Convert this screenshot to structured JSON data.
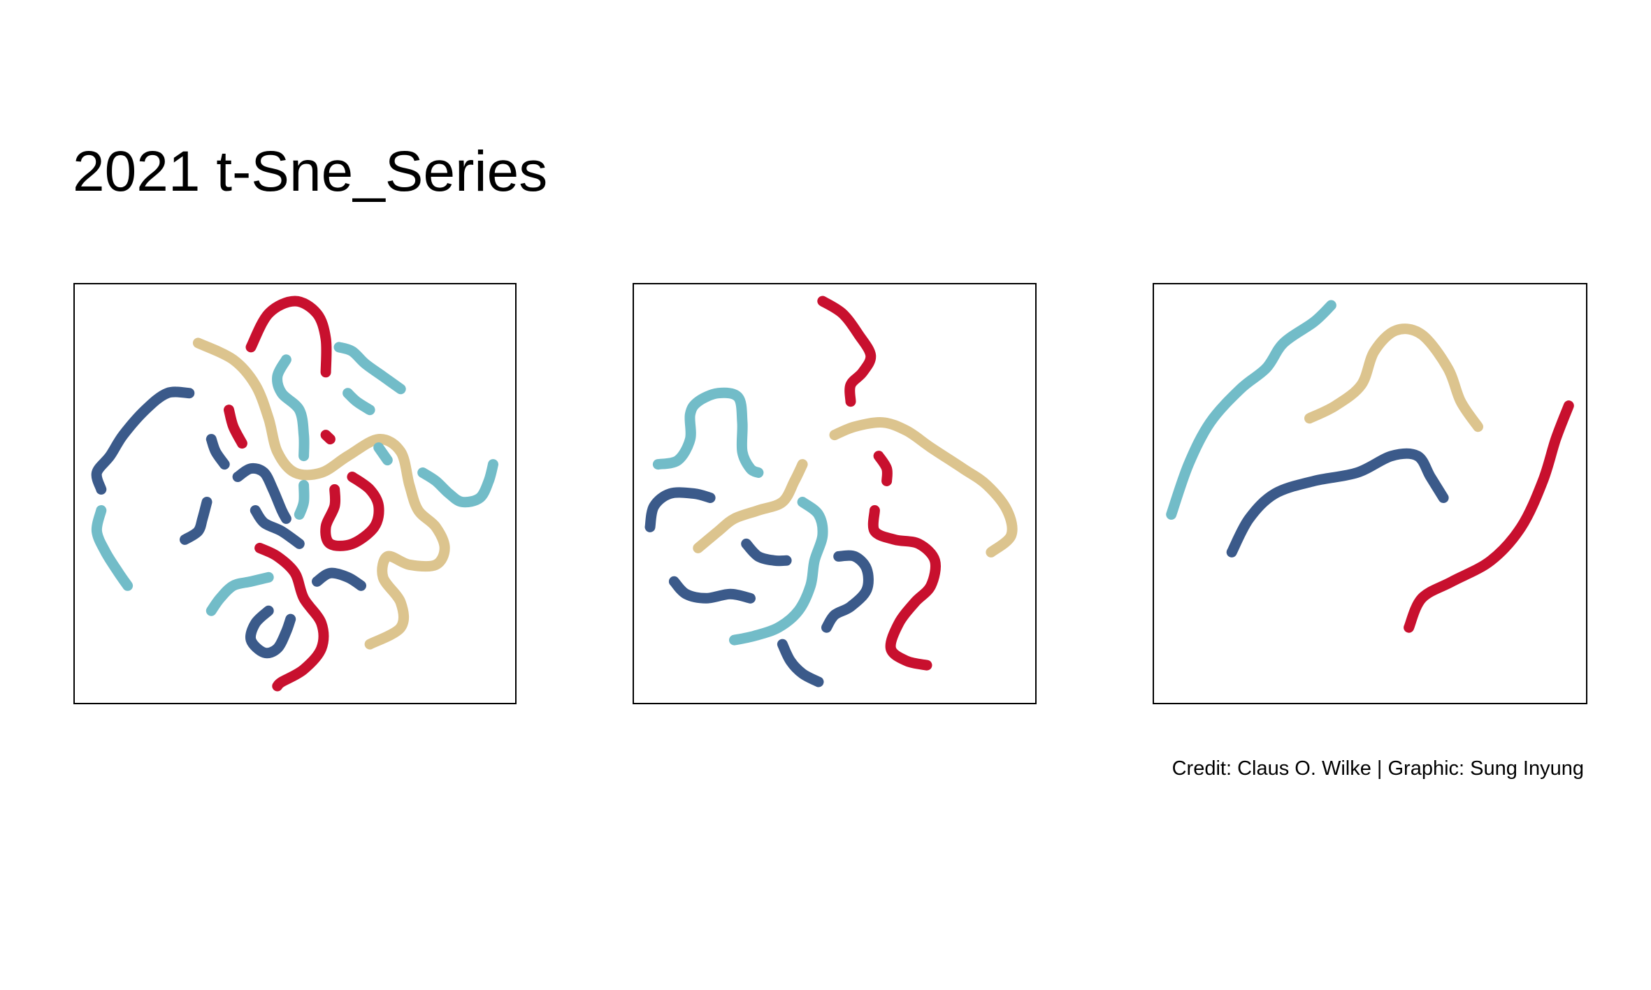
{
  "title": "2021 t-Sne_Series",
  "credit": "Credit: Claus O. Wilke | Graphic: Sung Inyung",
  "colors": {
    "red": "#c8102e",
    "tan": "#dcc48e",
    "teal": "#72bcc8",
    "navy": "#3b5a8a"
  },
  "chart_data": [
    {
      "type": "line",
      "xlim": [
        0,
        1
      ],
      "ylim": [
        0,
        1
      ],
      "series": [
        {
          "color": "red",
          "points": [
            [
              0.4,
              0.85
            ],
            [
              0.44,
              0.93
            ],
            [
              0.5,
              0.96
            ],
            [
              0.55,
              0.93
            ],
            [
              0.57,
              0.87
            ],
            [
              0.57,
              0.79
            ]
          ]
        },
        {
          "color": "tan",
          "points": [
            [
              0.28,
              0.86
            ],
            [
              0.36,
              0.82
            ],
            [
              0.41,
              0.76
            ],
            [
              0.44,
              0.68
            ],
            [
              0.46,
              0.6
            ],
            [
              0.5,
              0.55
            ],
            [
              0.56,
              0.55
            ],
            [
              0.62,
              0.59
            ],
            [
              0.69,
              0.63
            ],
            [
              0.74,
              0.6
            ],
            [
              0.76,
              0.52
            ],
            [
              0.78,
              0.46
            ],
            [
              0.82,
              0.42
            ],
            [
              0.84,
              0.37
            ],
            [
              0.82,
              0.33
            ],
            [
              0.76,
              0.33
            ],
            [
              0.71,
              0.35
            ],
            [
              0.7,
              0.3
            ],
            [
              0.74,
              0.24
            ],
            [
              0.74,
              0.18
            ],
            [
              0.67,
              0.14
            ]
          ]
        },
        {
          "color": "teal",
          "points": [
            [
              0.48,
              0.82
            ],
            [
              0.46,
              0.78
            ],
            [
              0.47,
              0.74
            ],
            [
              0.51,
              0.7
            ],
            [
              0.52,
              0.64
            ],
            [
              0.52,
              0.59
            ]
          ]
        },
        {
          "color": "teal",
          "points": [
            [
              0.6,
              0.85
            ],
            [
              0.63,
              0.84
            ],
            [
              0.66,
              0.81
            ],
            [
              0.7,
              0.78
            ],
            [
              0.74,
              0.75
            ]
          ]
        },
        {
          "color": "teal",
          "points": [
            [
              0.62,
              0.74
            ],
            [
              0.64,
              0.72
            ],
            [
              0.67,
              0.7
            ]
          ]
        },
        {
          "color": "navy",
          "points": [
            [
              0.26,
              0.74
            ],
            [
              0.21,
              0.74
            ],
            [
              0.16,
              0.7
            ],
            [
              0.11,
              0.64
            ],
            [
              0.08,
              0.59
            ],
            [
              0.05,
              0.55
            ],
            [
              0.06,
              0.51
            ]
          ]
        },
        {
          "color": "red",
          "points": [
            [
              0.35,
              0.7
            ],
            [
              0.36,
              0.66
            ],
            [
              0.38,
              0.62
            ]
          ]
        },
        {
          "color": "red",
          "points": [
            [
              0.57,
              0.64
            ],
            [
              0.58,
              0.63
            ]
          ]
        },
        {
          "color": "navy",
          "points": [
            [
              0.31,
              0.63
            ],
            [
              0.32,
              0.6
            ],
            [
              0.34,
              0.57
            ]
          ]
        },
        {
          "color": "teal",
          "points": [
            [
              0.69,
              0.61
            ],
            [
              0.71,
              0.58
            ]
          ]
        },
        {
          "color": "teal",
          "points": [
            [
              0.79,
              0.55
            ],
            [
              0.82,
              0.53
            ],
            [
              0.85,
              0.5
            ],
            [
              0.88,
              0.48
            ],
            [
              0.92,
              0.49
            ],
            [
              0.94,
              0.53
            ],
            [
              0.95,
              0.57
            ]
          ]
        },
        {
          "color": "navy",
          "points": [
            [
              0.37,
              0.54
            ],
            [
              0.4,
              0.56
            ],
            [
              0.43,
              0.55
            ],
            [
              0.45,
              0.51
            ],
            [
              0.47,
              0.46
            ],
            [
              0.48,
              0.44
            ]
          ]
        },
        {
          "color": "teal",
          "points": [
            [
              0.52,
              0.52
            ],
            [
              0.52,
              0.48
            ],
            [
              0.51,
              0.45
            ]
          ]
        },
        {
          "color": "red",
          "points": [
            [
              0.63,
              0.54
            ],
            [
              0.67,
              0.51
            ],
            [
              0.69,
              0.47
            ],
            [
              0.68,
              0.42
            ],
            [
              0.63,
              0.38
            ],
            [
              0.58,
              0.38
            ],
            [
              0.57,
              0.42
            ],
            [
              0.59,
              0.47
            ],
            [
              0.59,
              0.51
            ]
          ]
        },
        {
          "color": "teal",
          "points": [
            [
              0.06,
              0.46
            ],
            [
              0.05,
              0.41
            ],
            [
              0.07,
              0.36
            ],
            [
              0.1,
              0.31
            ],
            [
              0.12,
              0.28
            ]
          ]
        },
        {
          "color": "navy",
          "points": [
            [
              0.3,
              0.48
            ],
            [
              0.29,
              0.44
            ],
            [
              0.28,
              0.41
            ],
            [
              0.25,
              0.39
            ]
          ]
        },
        {
          "color": "navy",
          "points": [
            [
              0.41,
              0.46
            ],
            [
              0.43,
              0.43
            ],
            [
              0.47,
              0.41
            ],
            [
              0.51,
              0.38
            ]
          ]
        },
        {
          "color": "red",
          "points": [
            [
              0.42,
              0.37
            ],
            [
              0.46,
              0.35
            ],
            [
              0.5,
              0.31
            ],
            [
              0.52,
              0.25
            ],
            [
              0.56,
              0.19
            ],
            [
              0.56,
              0.13
            ],
            [
              0.52,
              0.08
            ],
            [
              0.47,
              0.05
            ],
            [
              0.46,
              0.04
            ]
          ]
        },
        {
          "color": "navy",
          "points": [
            [
              0.55,
              0.29
            ],
            [
              0.58,
              0.31
            ],
            [
              0.62,
              0.3
            ],
            [
              0.65,
              0.28
            ]
          ]
        },
        {
          "color": "teal",
          "points": [
            [
              0.31,
              0.22
            ],
            [
              0.33,
              0.25
            ],
            [
              0.36,
              0.28
            ],
            [
              0.4,
              0.29
            ],
            [
              0.44,
              0.3
            ]
          ]
        },
        {
          "color": "navy",
          "points": [
            [
              0.44,
              0.22
            ],
            [
              0.41,
              0.19
            ],
            [
              0.4,
              0.15
            ],
            [
              0.43,
              0.12
            ],
            [
              0.46,
              0.13
            ],
            [
              0.48,
              0.17
            ],
            [
              0.49,
              0.2
            ]
          ]
        }
      ]
    },
    {
      "type": "line",
      "xlim": [
        0,
        1
      ],
      "ylim": [
        0,
        1
      ],
      "series": [
        {
          "color": "red",
          "points": [
            [
              0.47,
              0.96
            ],
            [
              0.52,
              0.93
            ],
            [
              0.56,
              0.88
            ],
            [
              0.59,
              0.83
            ],
            [
              0.57,
              0.79
            ],
            [
              0.54,
              0.76
            ],
            [
              0.54,
              0.72
            ]
          ]
        },
        {
          "color": "teal",
          "points": [
            [
              0.06,
              0.57
            ],
            [
              0.11,
              0.58
            ],
            [
              0.14,
              0.63
            ],
            [
              0.14,
              0.69
            ],
            [
              0.16,
              0.72
            ],
            [
              0.21,
              0.74
            ],
            [
              0.26,
              0.73
            ],
            [
              0.27,
              0.67
            ],
            [
              0.27,
              0.6
            ],
            [
              0.29,
              0.56
            ],
            [
              0.31,
              0.55
            ]
          ]
        },
        {
          "color": "tan",
          "points": [
            [
              0.5,
              0.64
            ],
            [
              0.55,
              0.66
            ],
            [
              0.62,
              0.67
            ],
            [
              0.68,
              0.65
            ],
            [
              0.74,
              0.61
            ],
            [
              0.82,
              0.56
            ],
            [
              0.88,
              0.52
            ],
            [
              0.93,
              0.46
            ],
            [
              0.94,
              0.4
            ],
            [
              0.89,
              0.36
            ]
          ]
        },
        {
          "color": "red",
          "points": [
            [
              0.61,
              0.59
            ],
            [
              0.63,
              0.56
            ],
            [
              0.63,
              0.53
            ]
          ]
        },
        {
          "color": "tan",
          "points": [
            [
              0.42,
              0.57
            ],
            [
              0.4,
              0.53
            ],
            [
              0.37,
              0.48
            ],
            [
              0.31,
              0.46
            ],
            [
              0.25,
              0.44
            ],
            [
              0.21,
              0.41
            ],
            [
              0.16,
              0.37
            ]
          ]
        },
        {
          "color": "navy",
          "points": [
            [
              0.19,
              0.49
            ],
            [
              0.15,
              0.5
            ],
            [
              0.09,
              0.5
            ],
            [
              0.05,
              0.47
            ],
            [
              0.04,
              0.42
            ]
          ]
        },
        {
          "color": "teal",
          "points": [
            [
              0.42,
              0.48
            ],
            [
              0.46,
              0.45
            ],
            [
              0.47,
              0.4
            ],
            [
              0.45,
              0.34
            ],
            [
              0.44,
              0.28
            ],
            [
              0.41,
              0.22
            ],
            [
              0.36,
              0.18
            ],
            [
              0.3,
              0.16
            ],
            [
              0.25,
              0.15
            ]
          ]
        },
        {
          "color": "red",
          "points": [
            [
              0.6,
              0.46
            ],
            [
              0.6,
              0.41
            ],
            [
              0.65,
              0.39
            ],
            [
              0.71,
              0.38
            ],
            [
              0.75,
              0.34
            ],
            [
              0.74,
              0.28
            ],
            [
              0.7,
              0.24
            ],
            [
              0.66,
              0.19
            ],
            [
              0.64,
              0.13
            ],
            [
              0.68,
              0.1
            ],
            [
              0.73,
              0.09
            ]
          ]
        },
        {
          "color": "navy",
          "points": [
            [
              0.28,
              0.38
            ],
            [
              0.31,
              0.35
            ],
            [
              0.35,
              0.34
            ],
            [
              0.38,
              0.34
            ]
          ]
        },
        {
          "color": "navy",
          "points": [
            [
              0.51,
              0.35
            ],
            [
              0.55,
              0.35
            ],
            [
              0.58,
              0.32
            ],
            [
              0.58,
              0.27
            ],
            [
              0.54,
              0.23
            ],
            [
              0.5,
              0.21
            ],
            [
              0.48,
              0.18
            ]
          ]
        },
        {
          "color": "navy",
          "points": [
            [
              0.1,
              0.29
            ],
            [
              0.13,
              0.26
            ],
            [
              0.18,
              0.25
            ],
            [
              0.24,
              0.26
            ],
            [
              0.29,
              0.25
            ]
          ]
        },
        {
          "color": "navy",
          "points": [
            [
              0.37,
              0.14
            ],
            [
              0.39,
              0.1
            ],
            [
              0.42,
              0.07
            ],
            [
              0.46,
              0.05
            ]
          ]
        }
      ]
    },
    {
      "type": "line",
      "xlim": [
        0,
        1
      ],
      "ylim": [
        0,
        1
      ],
      "series": [
        {
          "color": "teal",
          "points": [
            [
              0.04,
              0.45
            ],
            [
              0.08,
              0.57
            ],
            [
              0.13,
              0.67
            ],
            [
              0.2,
              0.75
            ],
            [
              0.26,
              0.8
            ],
            [
              0.3,
              0.86
            ],
            [
              0.37,
              0.91
            ],
            [
              0.41,
              0.95
            ]
          ]
        },
        {
          "color": "tan",
          "points": [
            [
              0.36,
              0.68
            ],
            [
              0.42,
              0.71
            ],
            [
              0.48,
              0.76
            ],
            [
              0.51,
              0.84
            ],
            [
              0.56,
              0.89
            ],
            [
              0.62,
              0.88
            ],
            [
              0.68,
              0.8
            ],
            [
              0.71,
              0.72
            ],
            [
              0.75,
              0.66
            ]
          ]
        },
        {
          "color": "navy",
          "points": [
            [
              0.18,
              0.36
            ],
            [
              0.22,
              0.44
            ],
            [
              0.28,
              0.5
            ],
            [
              0.37,
              0.53
            ],
            [
              0.47,
              0.55
            ],
            [
              0.55,
              0.59
            ],
            [
              0.61,
              0.59
            ],
            [
              0.64,
              0.54
            ],
            [
              0.67,
              0.49
            ]
          ]
        },
        {
          "color": "red",
          "points": [
            [
              0.96,
              0.71
            ],
            [
              0.93,
              0.63
            ],
            [
              0.9,
              0.53
            ],
            [
              0.85,
              0.42
            ],
            [
              0.78,
              0.34
            ],
            [
              0.69,
              0.29
            ],
            [
              0.62,
              0.25
            ],
            [
              0.59,
              0.18
            ]
          ]
        }
      ]
    }
  ]
}
